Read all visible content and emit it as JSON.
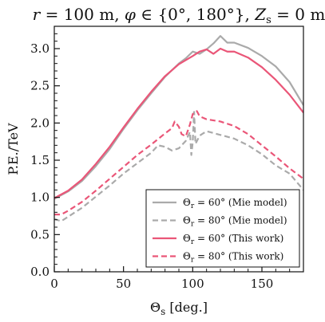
{
  "chart_data": {
    "type": "line",
    "title": "r = 100 m, φ ∈ {0°, 180°}, Z_s = 0 m",
    "title_parts": {
      "r_label": "r",
      "r_value": " = 100 m, ",
      "phi_label": "φ",
      "phi_value": " ∈ {0°, 180°}, ",
      "z_label": "Z",
      "z_sub": "s",
      "z_value": " = 0 m"
    },
    "xlabel": "Θs [deg.]",
    "xlabel_parts": {
      "symbol": "Θ",
      "sub": "s",
      "unit": " [deg.]"
    },
    "ylabel": "P.E./TeV",
    "xlim": [
      0,
      180
    ],
    "ylim": [
      0,
      3.3
    ],
    "x_ticks": [
      0,
      50,
      100,
      150
    ],
    "x_tick_labels": [
      "0",
      "50",
      "100",
      "150"
    ],
    "y_ticks": [
      0.0,
      0.5,
      1.0,
      1.5,
      2.0,
      2.5,
      3.0
    ],
    "y_tick_labels": [
      "0.0",
      "0.5",
      "1.0",
      "1.5",
      "2.0",
      "2.5",
      "3.0"
    ],
    "grid": false,
    "legend_position": "bottom-right",
    "series": [
      {
        "name": "Θr = 60° (Mie model)",
        "legend_parts": {
          "symbol": "Θ",
          "sub": "r",
          "rest": " = 60° (Mie model)"
        },
        "color": "#aaaaaa",
        "dash": "solid",
        "x": [
          0,
          10,
          20,
          30,
          40,
          50,
          60,
          70,
          80,
          90,
          95,
          100,
          105,
          110,
          115,
          120,
          125,
          130,
          140,
          150,
          160,
          170,
          180
        ],
        "y": [
          0.98,
          1.08,
          1.22,
          1.42,
          1.65,
          1.92,
          2.17,
          2.4,
          2.62,
          2.8,
          2.87,
          2.96,
          2.93,
          2.99,
          3.07,
          3.17,
          3.08,
          3.08,
          3.01,
          2.9,
          2.76,
          2.55,
          2.24
        ]
      },
      {
        "name": "Θr = 80° (Mie model)",
        "legend_parts": {
          "symbol": "Θ",
          "sub": "r",
          "rest": " = 80° (Mie model)"
        },
        "color": "#aaaaaa",
        "dash": "dashed",
        "x": [
          0,
          5,
          10,
          20,
          30,
          40,
          50,
          60,
          70,
          75,
          80,
          85,
          90,
          95,
          98,
          99,
          100,
          101,
          102,
          105,
          110,
          120,
          130,
          140,
          150,
          160,
          170,
          180
        ],
        "y": [
          0.71,
          0.68,
          0.74,
          0.86,
          1.01,
          1.16,
          1.32,
          1.46,
          1.6,
          1.7,
          1.68,
          1.63,
          1.66,
          1.76,
          1.88,
          1.57,
          1.74,
          2.15,
          1.72,
          1.83,
          1.89,
          1.84,
          1.79,
          1.7,
          1.58,
          1.43,
          1.32,
          1.1
        ]
      },
      {
        "name": "Θr = 60° (This work)",
        "legend_parts": {
          "symbol": "Θ",
          "sub": "r",
          "rest": " = 60° (This work)"
        },
        "color": "#ea5678",
        "dash": "solid",
        "x": [
          0,
          10,
          20,
          30,
          40,
          50,
          60,
          70,
          80,
          90,
          100,
          105,
          110,
          115,
          120,
          125,
          130,
          140,
          150,
          160,
          170,
          180
        ],
        "y": [
          0.99,
          1.09,
          1.24,
          1.45,
          1.68,
          1.94,
          2.19,
          2.42,
          2.63,
          2.79,
          2.9,
          2.96,
          2.99,
          2.93,
          3.0,
          2.96,
          2.96,
          2.88,
          2.75,
          2.58,
          2.38,
          2.14
        ]
      },
      {
        "name": "Θr = 80° (This work)",
        "legend_parts": {
          "symbol": "Θ",
          "sub": "r",
          "rest": " = 80° (This work)"
        },
        "color": "#ea5678",
        "dash": "dashed",
        "x": [
          0,
          5,
          10,
          20,
          30,
          40,
          50,
          60,
          70,
          80,
          85,
          87,
          90,
          92,
          95,
          98,
          100,
          103,
          105,
          110,
          120,
          130,
          140,
          150,
          160,
          170,
          180
        ],
        "y": [
          0.77,
          0.77,
          0.82,
          0.94,
          1.09,
          1.25,
          1.41,
          1.57,
          1.71,
          1.86,
          1.93,
          2.02,
          1.95,
          1.85,
          1.82,
          1.98,
          2.12,
          2.16,
          2.09,
          2.05,
          2.02,
          1.96,
          1.85,
          1.7,
          1.55,
          1.39,
          1.25
        ]
      }
    ]
  }
}
